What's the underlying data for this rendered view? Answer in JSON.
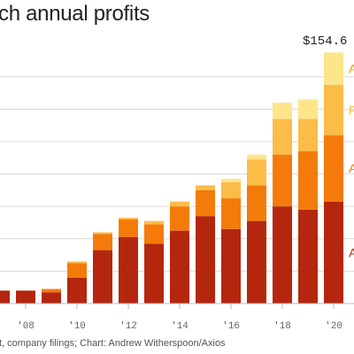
{
  "title": "ch annual profits",
  "source": "t, company filings; Chart: Andrew Witherspoon/Axios",
  "total_label": "$154.6",
  "colors": {
    "s1": "#b5260f",
    "s2": "#f47b0a",
    "s3": "#fcbc48",
    "s4": "#fde58a",
    "grid": "#d9d9d9",
    "axis": "#bbbbbb"
  },
  "right_labels": [
    "A",
    "F",
    "A",
    "A"
  ],
  "chart_data": {
    "type": "bar",
    "stacked": true,
    "title": "ch annual profits",
    "x": [
      2007,
      2008,
      2009,
      2010,
      2011,
      2012,
      2013,
      2014,
      2015,
      2016,
      2017,
      2018,
      2019,
      2020
    ],
    "xtick_labels": [
      "'08",
      "'10",
      "'12",
      "'14",
      "'16",
      "'18",
      "'20"
    ],
    "ylim": [
      0,
      160
    ],
    "grid": true,
    "series": [
      {
        "values": [
          8,
          8,
          7,
          16,
          33,
          41,
          37,
          45,
          54,
          46,
          51,
          60,
          58,
          63
        ]
      },
      {
        "values": [
          0,
          0,
          2,
          9,
          10,
          11,
          12,
          15,
          16,
          19,
          22,
          32,
          36,
          41
        ]
      },
      {
        "values": [
          0,
          0,
          0,
          1,
          1,
          1,
          2,
          3,
          3,
          10,
          16,
          22,
          20,
          31
        ]
      },
      {
        "values": [
          0,
          0,
          0,
          0,
          0,
          0,
          0,
          0,
          0,
          2,
          3,
          10,
          12,
          20
        ]
      }
    ],
    "total_2020": 154.6
  }
}
